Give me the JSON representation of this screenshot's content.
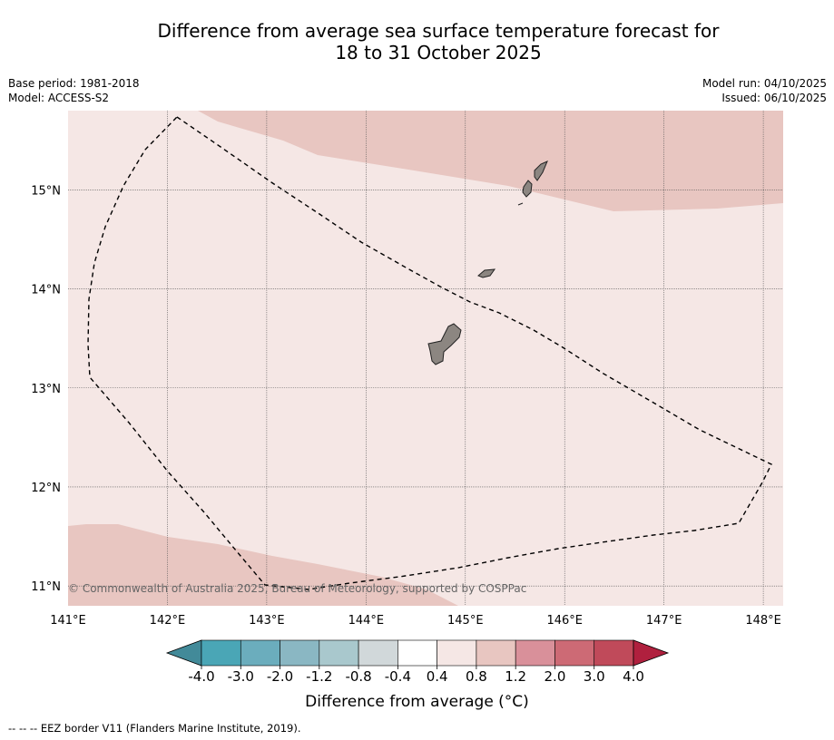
{
  "header": {
    "title_line1": "Difference from average sea surface temperature forecast for",
    "title_line2": "18 to 31 October 2025",
    "base_period": "Base period: 1981-2018",
    "model": "Model: ACCESS-S2",
    "model_run": "Model run: 04/10/2025",
    "issued": "Issued: 06/10/2025"
  },
  "map": {
    "lon_labels": [
      "141°E",
      "142°E",
      "143°E",
      "144°E",
      "145°E",
      "146°E",
      "147°E",
      "148°E"
    ],
    "lat_labels": [
      "15°N",
      "14°N",
      "13°N",
      "12°N",
      "11°N"
    ],
    "lon_values": [
      141,
      142,
      143,
      144,
      145,
      146,
      147,
      148
    ],
    "lat_values": [
      15,
      14,
      13,
      12,
      11
    ],
    "extent": {
      "lon_min": 141,
      "lon_max": 148.2,
      "lat_min": 10.8,
      "lat_max": 15.8
    },
    "copyright": "© Commonwealth of Australia 2025, Bureau of Meteorology, supported by COSPPac",
    "colors": {
      "anomaly_0_4_to_0_8": "#f5e7e5",
      "anomaly_0_8_to_1_2": "#e8c6c1",
      "land": "#8c8681",
      "eez_border": "#000000",
      "gridline": "#555555"
    }
  },
  "colorbar": {
    "tick_labels": [
      "-4.0",
      "-3.0",
      "-2.0",
      "-1.2",
      "-0.8",
      "-0.4",
      "0.4",
      "0.8",
      "1.2",
      "2.0",
      "3.0",
      "4.0"
    ],
    "colors": [
      "#428a99",
      "#4aa6b6",
      "#6badbd",
      "#8ab7c3",
      "#a9c8cd",
      "#d1d8da",
      "#ffffff",
      "#f5e7e5",
      "#e8c6c1",
      "#d9909a",
      "#cd6a75",
      "#c04a5a",
      "#b0203e"
    ],
    "label": "Difference from average (°C)"
  },
  "footer": {
    "legend": "--  --  -- EEZ border V11 (Flanders Marine Institute, 2019)."
  }
}
